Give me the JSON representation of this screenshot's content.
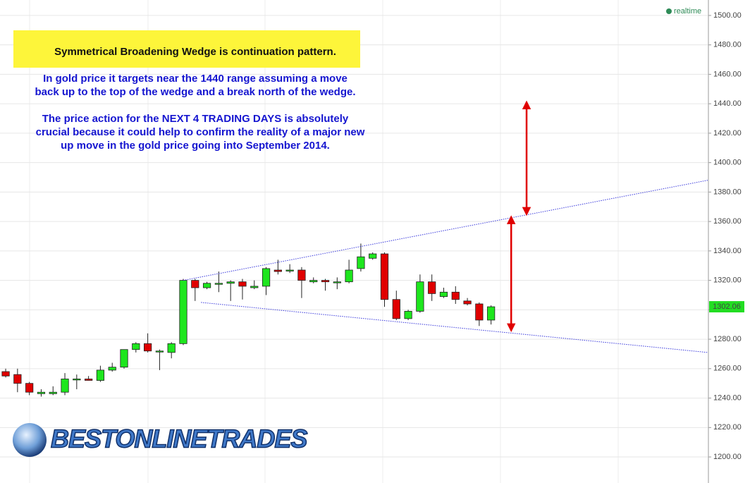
{
  "chart_data": {
    "type": "candlestick",
    "open": [
      1258,
      1256,
      1250,
      1243,
      1243,
      1244,
      1253,
      1253,
      1252,
      1259,
      1261,
      1273,
      1277,
      1272,
      1271,
      1277,
      1320,
      1315,
      1318,
      1318,
      1319,
      1315,
      1316,
      1327,
      1327,
      1327,
      1319,
      1320,
      1319,
      1319,
      1328,
      1335,
      1338,
      1307,
      1294,
      1299,
      1319,
      1309,
      1312,
      1306,
      1304,
      1293
    ],
    "high": [
      1260,
      1260,
      1251,
      1246,
      1248,
      1257,
      1256,
      1255,
      1262,
      1264,
      1273,
      1278,
      1284,
      1273,
      1278,
      1321,
      1321,
      1319,
      1326,
      1320,
      1321,
      1320,
      1329,
      1334,
      1331,
      1329,
      1322,
      1321,
      1322,
      1334,
      1345,
      1339,
      1339,
      1313,
      1300,
      1324,
      1324,
      1315,
      1316,
      1308,
      1305,
      1303
    ],
    "low": [
      1254,
      1244,
      1242,
      1241,
      1242,
      1242,
      1246,
      1252,
      1251,
      1258,
      1260,
      1271,
      1271,
      1259,
      1267,
      1276,
      1306,
      1314,
      1312,
      1306,
      1307,
      1314,
      1310,
      1324,
      1325,
      1308,
      1318,
      1313,
      1314,
      1318,
      1326,
      1334,
      1302,
      1293,
      1293,
      1298,
      1306,
      1308,
      1304,
      1303,
      1289,
      1290
    ],
    "close": [
      1255,
      1250,
      1244,
      1244,
      1244,
      1253,
      1253,
      1252,
      1259,
      1261,
      1273,
      1277,
      1272,
      1272,
      1277,
      1320,
      1315,
      1318,
      1318,
      1319,
      1316,
      1316,
      1328,
      1326,
      1327,
      1320,
      1320,
      1319,
      1319,
      1327,
      1336,
      1338,
      1307,
      1294,
      1299,
      1319,
      1311,
      1312,
      1307,
      1304,
      1293,
      1302.06
    ],
    "up_color": "#1ee61e",
    "down_color": "#e00000",
    "xlim": [
      -0.48,
      59.3
    ],
    "ylim": [
      1182.3,
      1510.5
    ],
    "yticks": [
      {
        "value": 1200,
        "label": "1200.00"
      },
      {
        "value": 1220,
        "label": "1220.00"
      },
      {
        "value": 1240,
        "label": "1240.00"
      },
      {
        "value": 1260,
        "label": "1260.00"
      },
      {
        "value": 1280,
        "label": "1280.00"
      },
      {
        "value": 1300,
        "label": "1300.00"
      },
      {
        "value": 1320,
        "label": "1320.00"
      },
      {
        "value": 1340,
        "label": "1340.00"
      },
      {
        "value": 1360,
        "label": "1360.00"
      },
      {
        "value": 1380,
        "label": "1380.00"
      },
      {
        "value": 1400,
        "label": "1400.00"
      },
      {
        "value": 1420,
        "label": "1420.00"
      },
      {
        "value": 1440,
        "label": "1440.00"
      },
      {
        "value": 1460,
        "label": "1460.00"
      },
      {
        "value": 1480,
        "label": "1480.00"
      },
      {
        "value": 1500,
        "label": "1500.00"
      }
    ],
    "grid": true,
    "trendlines": [
      {
        "x": [
          15,
          59.3
        ],
        "y": [
          1320,
          1388
        ]
      },
      {
        "x": [
          16.5,
          59.3
        ],
        "y": [
          1305,
          1271
        ]
      }
    ],
    "trendline_color": "#3b3bdc",
    "arrows": [
      {
        "x": 44,
        "from": 1441,
        "to": 1365
      },
      {
        "x": 42.7,
        "from": 1363,
        "to": 1286
      }
    ],
    "arrow_color": "#e00000",
    "status": "realtime",
    "headline": "Symmetrical Broadening Wedge is continuation pattern.",
    "notes": [
      "In gold price it targets near the 1440 range assuming a move",
      "back up to the top of the wedge and a break north of the wedge.",
      "The price action for the NEXT 4 TRADING DAYS is absolutely",
      "crucial because it could help to confirm the reality of a major new",
      "up move in the gold price going into September 2014."
    ],
    "logo": "BESTONLINETRADES"
  }
}
